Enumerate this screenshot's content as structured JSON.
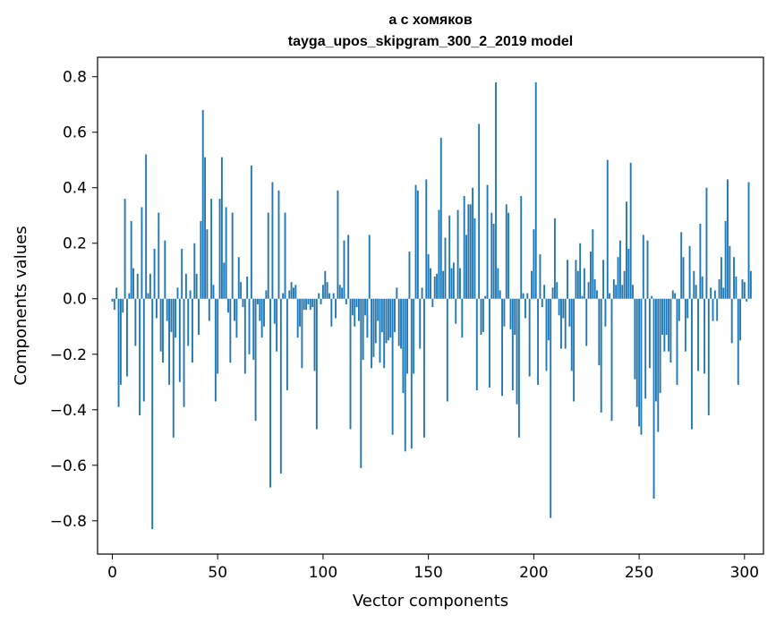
{
  "chart_data": {
    "type": "bar",
    "title_line1": "а с хомяков",
    "title_line2": "tayga_upos_skipgram_300_2_2019 model",
    "xlabel": "Vector components",
    "ylabel": "Components values",
    "xlim": [
      -7,
      309
    ],
    "ylim": [
      -0.92,
      0.87
    ],
    "xticks": [
      0,
      50,
      100,
      150,
      200,
      250,
      300
    ],
    "xtick_labels": [
      "0",
      "50",
      "100",
      "150",
      "200",
      "250",
      "300"
    ],
    "yticks": [
      -0.8,
      -0.6,
      -0.4,
      -0.2,
      0.0,
      0.2,
      0.4,
      0.6,
      0.8
    ],
    "ytick_labels": [
      "−0.8",
      "−0.6",
      "−0.4",
      "−0.2",
      "0.0",
      "0.2",
      "0.4",
      "0.6",
      "0.8"
    ],
    "bar_color": "#1f77b4",
    "values": [
      -0.01,
      -0.04,
      0.04,
      -0.39,
      -0.31,
      -0.05,
      0.36,
      -0.28,
      0.02,
      0.28,
      0.11,
      -0.17,
      0.09,
      -0.42,
      0.33,
      -0.37,
      0.52,
      0.02,
      0.09,
      -0.83,
      0.18,
      -0.07,
      0.31,
      -0.19,
      -0.23,
      0.21,
      -0.08,
      -0.31,
      -0.12,
      -0.5,
      -0.14,
      0.04,
      -0.3,
      0.18,
      -0.39,
      0.09,
      -0.17,
      0.03,
      -0.23,
      0.2,
      0.09,
      -0.13,
      0.28,
      0.68,
      0.51,
      0.25,
      -0.08,
      0.36,
      0.05,
      -0.37,
      -0.27,
      0.36,
      0.51,
      0.13,
      0.33,
      -0.05,
      -0.23,
      0.31,
      -0.08,
      -0.14,
      0.15,
      0.06,
      -0.03,
      -0.27,
      0.08,
      -0.2,
      0.48,
      -0.22,
      -0.44,
      -0.02,
      -0.08,
      -0.14,
      -0.1,
      0.03,
      0.31,
      -0.68,
      0.42,
      -0.09,
      -0.19,
      0.39,
      -0.63,
      0.02,
      0.31,
      -0.33,
      0.03,
      0.06,
      0.04,
      0.05,
      -0.14,
      -0.1,
      -0.25,
      -0.04,
      -0.04,
      -0.02,
      -0.04,
      -0.03,
      -0.26,
      -0.47,
      0.02,
      -0.02,
      0.05,
      0.1,
      0.06,
      0.02,
      -0.1,
      0.02,
      -0.07,
      0.39,
      0.05,
      0.04,
      0.21,
      -0.02,
      0.23,
      -0.47,
      -0.06,
      -0.1,
      -0.03,
      -0.08,
      -0.61,
      -0.22,
      -0.06,
      -0.14,
      0.23,
      -0.25,
      -0.21,
      -0.16,
      -0.08,
      -0.23,
      -0.12,
      -0.25,
      -0.16,
      -0.15,
      -0.14,
      -0.49,
      -0.12,
      0.04,
      -0.17,
      -0.18,
      -0.34,
      -0.55,
      -0.27,
      0.17,
      -0.54,
      -0.27,
      0.41,
      0.39,
      -0.18,
      0.04,
      -0.5,
      0.43,
      0.16,
      0.11,
      -0.03,
      0.08,
      0.09,
      0.32,
      0.58,
      0.1,
      0.22,
      -0.37,
      0.3,
      0.11,
      0.13,
      -0.09,
      0.32,
      0.11,
      -0.14,
      0.37,
      0.23,
      0.34,
      0.34,
      0.4,
      0.29,
      -0.33,
      0.63,
      -0.13,
      -0.12,
      0.01,
      0.41,
      -0.32,
      0.31,
      0.27,
      0.78,
      0.11,
      0.03,
      -0.35,
      -0.1,
      0.34,
      0.31,
      -0.11,
      -0.33,
      -0.13,
      -0.38,
      -0.5,
      0.37,
      0.02,
      -0.07,
      0.02,
      -0.28,
      0.1,
      0.25,
      0.78,
      -0.31,
      0.16,
      -0.03,
      0.05,
      -0.26,
      -0.15,
      -0.79,
      0.04,
      0.29,
      0.06,
      -0.06,
      -0.18,
      -0.07,
      -0.18,
      0.14,
      -0.1,
      -0.26,
      -0.37,
      0.14,
      0.1,
      0.2,
      0.01,
      0.11,
      -0.17,
      0.06,
      0.17,
      0.25,
      0.07,
      0.03,
      -0.24,
      -0.41,
      0.14,
      -0.1,
      0.5,
      0.02,
      -0.44,
      0.07,
      0.05,
      0.15,
      0.21,
      0.05,
      0.1,
      0.35,
      0.18,
      0.49,
      0.05,
      -0.29,
      -0.39,
      -0.46,
      -0.49,
      0.23,
      -0.36,
      0.21,
      -0.25,
      0.01,
      -0.72,
      -0.37,
      -0.48,
      -0.34,
      -0.13,
      -0.19,
      -0.13,
      -0.19,
      -0.23,
      0.03,
      0.02,
      -0.31,
      -0.08,
      0.24,
      0.15,
      -0.19,
      -0.07,
      0.19,
      -0.47,
      0.1,
      0.05,
      -0.26,
      0.27,
      0.08,
      -0.27,
      0.4,
      -0.42,
      0.04,
      -0.08,
      0.03,
      -0.08,
      0.07,
      0.15,
      0.04,
      0.28,
      0.43,
      0.19,
      -0.16,
      0.15,
      0.08,
      -0.31,
      -0.15,
      0.07,
      0.06,
      -0.01,
      0.42,
      0.1
    ]
  }
}
